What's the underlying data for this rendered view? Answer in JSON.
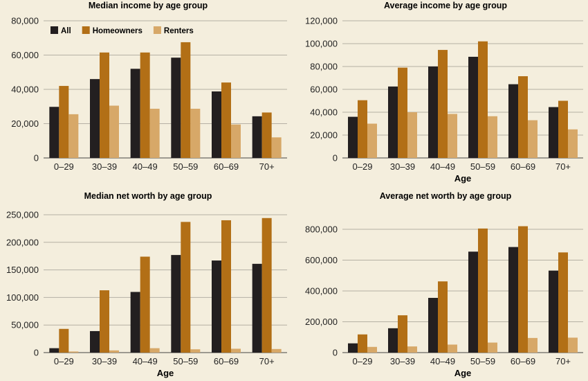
{
  "chart_data": [
    {
      "type": "bar",
      "title": "Median income by age group",
      "xlabel": "",
      "ylabel": "",
      "categories": [
        "0–29",
        "30–39",
        "40–49",
        "50–59",
        "60–69",
        "70+"
      ],
      "ylim": [
        0,
        80000
      ],
      "yticks": [
        0,
        20000,
        40000,
        60000,
        80000
      ],
      "grid": true,
      "legend": "top-left",
      "series": [
        {
          "name": "All",
          "color": "#231f20",
          "values": [
            29800,
            46000,
            52000,
            58500,
            38800,
            24300
          ]
        },
        {
          "name": "Homeowners",
          "color": "#b26f16",
          "values": [
            42000,
            61500,
            61500,
            67500,
            44000,
            26500
          ]
        },
        {
          "name": "Renters",
          "color": "#d7a868",
          "values": [
            25500,
            30500,
            28700,
            28700,
            19500,
            12000
          ]
        }
      ]
    },
    {
      "type": "bar",
      "title": "Average income by age group",
      "xlabel": "Age",
      "ylabel": "",
      "categories": [
        "0–29",
        "30–39",
        "40–49",
        "50–59",
        "60–69",
        "70+"
      ],
      "ylim": [
        0,
        120000
      ],
      "yticks": [
        0,
        20000,
        40000,
        60000,
        80000,
        100000,
        120000
      ],
      "grid": true,
      "series": [
        {
          "name": "All",
          "color": "#231f20",
          "values": [
            36000,
            62500,
            80000,
            88500,
            64500,
            44500
          ]
        },
        {
          "name": "Homeowners",
          "color": "#b26f16",
          "values": [
            50500,
            79000,
            94500,
            102000,
            71500,
            50000
          ]
        },
        {
          "name": "Renters",
          "color": "#d7a868",
          "values": [
            30000,
            40000,
            38500,
            36500,
            33000,
            25000
          ]
        }
      ]
    },
    {
      "type": "bar",
      "title": "Median net worth by age group",
      "xlabel": "Age",
      "ylabel": "",
      "categories": [
        "0–29",
        "30–39",
        "40–49",
        "50–59",
        "60–69",
        "70+"
      ],
      "ylim": [
        0,
        250000
      ],
      "yticks": [
        0,
        50000,
        100000,
        150000,
        200000,
        250000
      ],
      "grid": true,
      "series": [
        {
          "name": "All",
          "color": "#231f20",
          "values": [
            8000,
            39000,
            110000,
            177000,
            167000,
            161000
          ]
        },
        {
          "name": "Homeowners",
          "color": "#b26f16",
          "values": [
            43000,
            113000,
            174000,
            237000,
            240000,
            244000
          ]
        },
        {
          "name": "Renters",
          "color": "#d7a868",
          "values": [
            2000,
            4000,
            8000,
            6000,
            7000,
            6500
          ]
        }
      ]
    },
    {
      "type": "bar",
      "title": "Average net worth by age group",
      "xlabel": "Age",
      "ylabel": "",
      "categories": [
        "0–29",
        "30–39",
        "40–49",
        "50–59",
        "60–69",
        "70+"
      ],
      "ylim": [
        0,
        800000
      ],
      "yticks": [
        0,
        200000,
        400000,
        600000,
        800000
      ],
      "grid": true,
      "series": [
        {
          "name": "All",
          "color": "#231f20",
          "values": [
            60000,
            158000,
            355000,
            655000,
            685000,
            532000
          ]
        },
        {
          "name": "Homeowners",
          "color": "#b26f16",
          "values": [
            118000,
            242000,
            462000,
            805000,
            820000,
            650000
          ]
        },
        {
          "name": "Renters",
          "color": "#d7a868",
          "values": [
            37000,
            40000,
            52000,
            65000,
            95000,
            97000
          ]
        }
      ]
    }
  ]
}
